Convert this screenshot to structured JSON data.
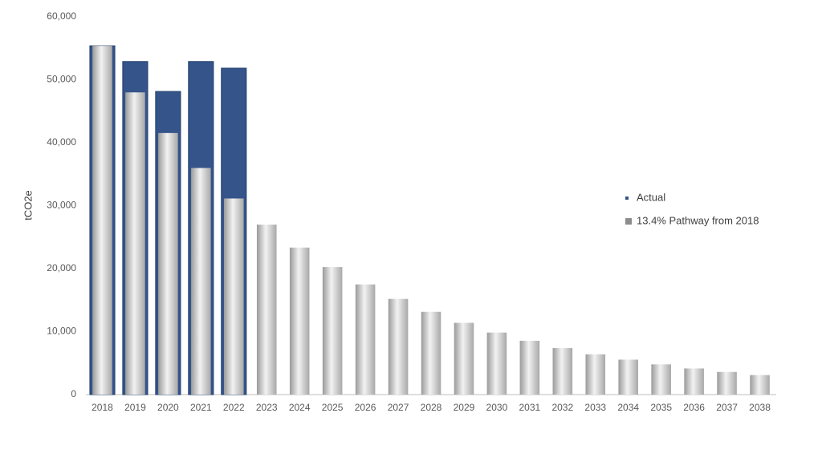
{
  "chart_data": {
    "type": "overlapping-bar",
    "y_label": "tCO2e",
    "categories": [
      "2018",
      "2019",
      "2020",
      "2021",
      "2022",
      "2023",
      "2024",
      "2025",
      "2026",
      "2027",
      "2028",
      "2029",
      "2030",
      "2031",
      "2032",
      "2033",
      "2034",
      "2035",
      "2036",
      "2037",
      "2038"
    ],
    "series": [
      {
        "name": "Actual",
        "color": "#34548a",
        "values": [
          55400,
          52900,
          48150,
          52900,
          51850,
          null,
          null,
          null,
          null,
          null,
          null,
          null,
          null,
          null,
          null,
          null,
          null,
          null,
          null,
          null,
          null
        ]
      },
      {
        "name": "13.4% Pathway from 2018",
        "color": "#c8c8c8",
        "values": [
          55400,
          48000,
          41550,
          36000,
          31150,
          27000,
          23350,
          20250,
          17500,
          15200,
          13150,
          11400,
          9850,
          8550,
          7400,
          6400,
          5550,
          4800,
          4150,
          3600,
          3100
        ]
      }
    ],
    "ylim": [
      0,
      60000
    ],
    "yticks": [
      {
        "value": 0,
        "label": "0"
      },
      {
        "value": 10000,
        "label": "10,000"
      },
      {
        "value": 20000,
        "label": "20,000"
      },
      {
        "value": 30000,
        "label": "30,000"
      },
      {
        "value": 40000,
        "label": "40,000"
      },
      {
        "value": 50000,
        "label": "50,000"
      },
      {
        "value": 60000,
        "label": "60,000"
      }
    ],
    "grid": false,
    "legend": "right"
  }
}
